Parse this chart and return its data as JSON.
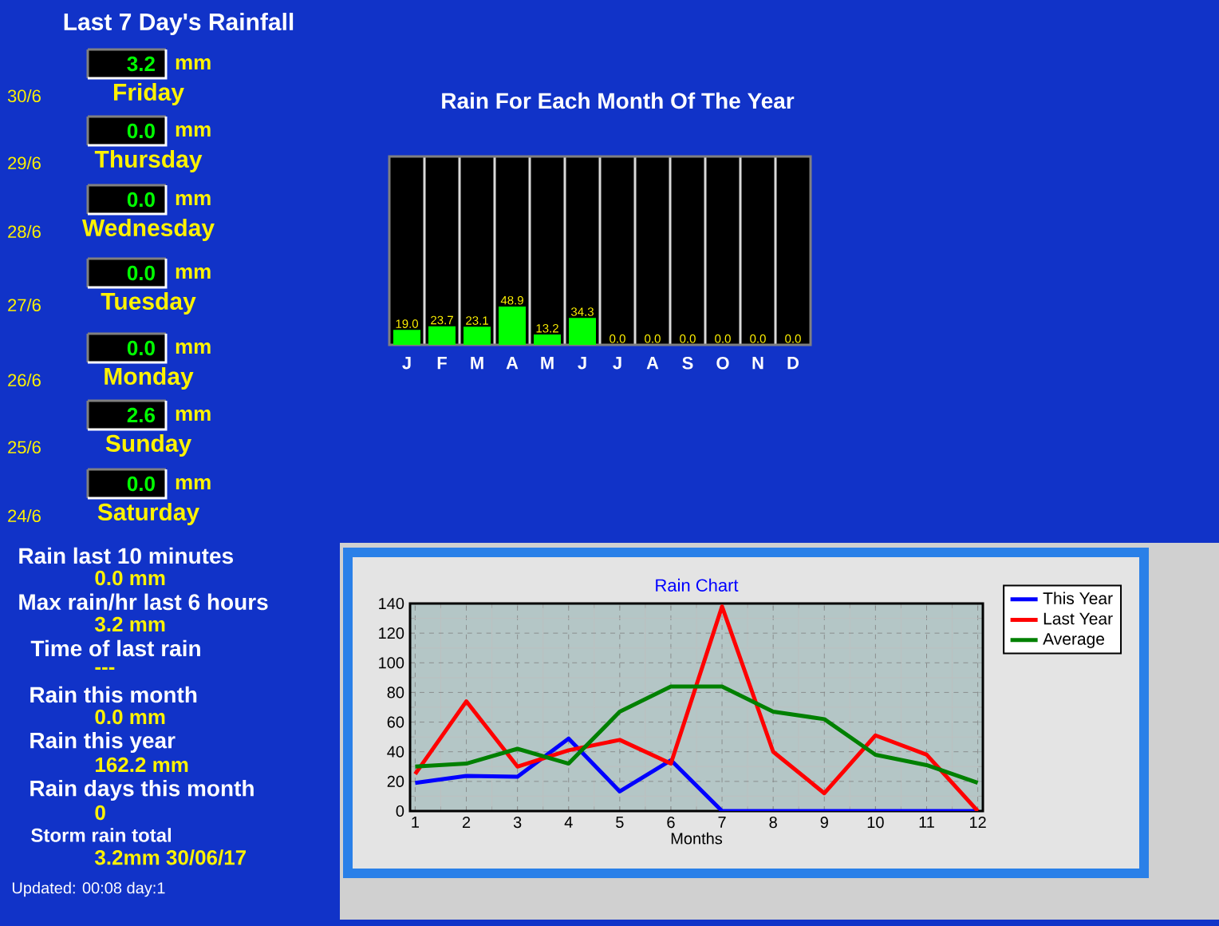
{
  "chart_data": [
    {
      "type": "other",
      "title": "Last 7 Day's Rainfall",
      "annotations": [
        "3.2",
        "mm",
        "Friday",
        "30/6",
        "0.0",
        "mm",
        "Thursday",
        "29/6",
        "0.0",
        "mm",
        "Wednesday",
        "28/6",
        "0.0",
        "mm",
        "Tuesday",
        "27/6",
        "0.0",
        "mm",
        "Monday",
        "26/6",
        "2.6",
        "mm",
        "Sunday",
        "25/6",
        "0.0",
        "mm",
        "Saturday",
        "24/6"
      ]
    },
    {
      "type": "bar",
      "title": "Rain For Each Month Of The Year",
      "categories": [
        "J",
        "F",
        "M",
        "A",
        "M",
        "J",
        "J",
        "A",
        "S",
        "O",
        "N",
        "D"
      ],
      "values": [
        19.0,
        23.7,
        23.1,
        48.9,
        13.2,
        34.3,
        0.0,
        0.0,
        0.0,
        0.0,
        0.0,
        0.0
      ],
      "value_labels": [
        "19.0",
        "23.7",
        "23.1",
        "48.9",
        "13.2",
        "34.3",
        "0.0",
        "0.0",
        "0.0",
        "0.0",
        "0.0",
        "0.0"
      ],
      "color": "#00ff00",
      "ylim": [
        0,
        240
      ],
      "tick_labels": "x"
    },
    {
      "type": "other",
      "annotations": [
        "Rain last 10 minutes",
        "0.0 mm",
        "Max rain/hr last 6 hours",
        "3.2 mm",
        "Time of last rain",
        "---",
        "Rain this month",
        "0.0 mm",
        "Rain this year",
        "162.2 mm",
        "Rain days this month",
        "0",
        "Storm rain total",
        "3.2mm 30/06/17",
        "Updated: 00:08 day:1"
      ]
    },
    {
      "type": "line",
      "title": "Rain Chart",
      "xlabel": "Months",
      "x": [
        1,
        2,
        3,
        4,
        5,
        6,
        7,
        8,
        9,
        10,
        11,
        12
      ],
      "xlim": [
        0.9,
        12.1
      ],
      "xticks": [
        1,
        2,
        3,
        4,
        5,
        6,
        7,
        8,
        9,
        10,
        11,
        12
      ],
      "ylim": [
        0,
        140
      ],
      "yticks": [
        0,
        20,
        40,
        60,
        80,
        100,
        120,
        140
      ],
      "grid": true,
      "legend": "right",
      "series": [
        {
          "name": "This Year",
          "color": "#0000ff",
          "values": [
            19.0,
            23.7,
            23.1,
            48.9,
            13.2,
            34.3,
            0,
            0,
            0,
            0,
            0,
            0
          ]
        },
        {
          "name": "Last Year",
          "color": "#ff0000",
          "values": [
            25,
            74,
            30,
            41,
            48,
            32,
            138,
            40,
            12,
            51,
            38,
            0
          ]
        },
        {
          "name": "Average",
          "color": "#008000",
          "values": [
            30,
            32,
            42,
            32,
            67,
            84,
            84,
            67,
            62,
            38,
            31,
            19
          ]
        }
      ]
    }
  ]
}
